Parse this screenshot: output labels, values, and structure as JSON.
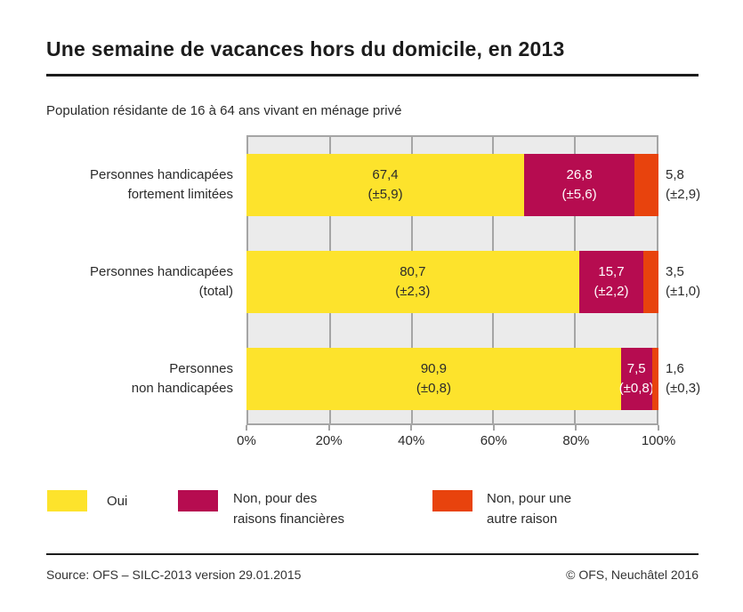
{
  "header": {
    "title": "Une semaine de vacances hors du domicile, en 2013",
    "subtitle": "Population résidante de 16 à 64 ans vivant en ménage privé"
  },
  "chart_data": {
    "type": "bar",
    "orientation": "horizontal",
    "stacked": true,
    "unit": "%",
    "title": "Une semaine de vacances hors du domicile, en 2013",
    "subtitle": "Population résidante de 16 à 64 ans vivant en ménage privé",
    "categories": [
      "Personnes handicapées fortement limitées",
      "Personnes handicapées (total)",
      "Personnes non handicapées"
    ],
    "series": [
      {
        "name": "Oui",
        "color": "#fde32c",
        "values": [
          67.4,
          80.7,
          90.9
        ],
        "ci": [
          5.9,
          2.3,
          0.8
        ]
      },
      {
        "name": "Non, pour des raisons financières",
        "color": "#b60c50",
        "values": [
          26.8,
          15.7,
          7.5
        ],
        "ci": [
          5.6,
          2.2,
          0.8
        ]
      },
      {
        "name": "Non, pour une autre raison",
        "color": "#e8430d",
        "values": [
          5.8,
          3.5,
          1.6
        ],
        "ci": [
          2.9,
          1.0,
          0.3
        ]
      }
    ],
    "xticks": [
      "0%",
      "20%",
      "40%",
      "60%",
      "80%",
      "100%"
    ],
    "xlim": [
      0,
      100
    ],
    "grid": true,
    "legend_position": "bottom",
    "plot_background": "#ebebeb",
    "gridline_color": "#a5a5a5"
  },
  "rows": [
    {
      "label1": "Personnes handicapées",
      "label2": "fortement limitées",
      "oui": "67,4",
      "oui_ci": "(±5,9)",
      "fin": "26,8",
      "fin_ci": "(±5,6)",
      "autre": "5,8",
      "autre_ci": "(±2,9)"
    },
    {
      "label1": "Personnes handicapées",
      "label2": "(total)",
      "oui": "80,7",
      "oui_ci": "(±2,3)",
      "fin": "15,7",
      "fin_ci": "(±2,2)",
      "autre": "3,5",
      "autre_ci": "(±1,0)"
    },
    {
      "label1": "Personnes",
      "label2": "non handicapées",
      "oui": "90,9",
      "oui_ci": "(±0,8)",
      "fin": "7,5",
      "fin_ci": "(±0,8)",
      "autre": "1,6",
      "autre_ci": "(±0,3)"
    }
  ],
  "legend": {
    "items": [
      {
        "label1": "Oui",
        "label2": ""
      },
      {
        "label1": "Non, pour des",
        "label2": "raisons financières"
      },
      {
        "label1": "Non, pour une",
        "label2": "autre raison"
      }
    ]
  },
  "footer": {
    "source": "Source: OFS – SILC-2013 version 29.01.2015",
    "copyright": "© OFS, Neuchâtel 2016"
  }
}
